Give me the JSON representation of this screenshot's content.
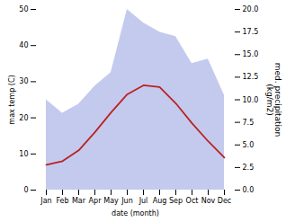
{
  "chart_data": {
    "type": "line",
    "xlabel": "date (month)",
    "ylabel": "max temp (C)",
    "y2label": "med. precipitation\n(kg/m2)",
    "categories": [
      "Jan",
      "Feb",
      "Mar",
      "Apr",
      "May",
      "Jun",
      "Jul",
      "Aug",
      "Sep",
      "Oct",
      "Nov",
      "Dec"
    ],
    "series": [
      {
        "type": "area",
        "axis": "y2",
        "color": "#b0b8e8",
        "values": [
          10.0,
          8.5,
          9.5,
          11.5,
          13.0,
          20.0,
          18.5,
          17.5,
          17.0,
          14.0,
          14.5,
          10.5
        ]
      },
      {
        "type": "line",
        "color": "#bb2222",
        "values": [
          7.0,
          8.0,
          11.0,
          16.0,
          21.5,
          26.5,
          29.0,
          28.5,
          24.0,
          18.5,
          13.5,
          9.0
        ]
      }
    ],
    "ylim": [
      0,
      50
    ],
    "yticks": [
      0,
      10,
      20,
      30,
      40,
      50
    ],
    "y2lim": [
      0,
      20
    ],
    "y2ticks": [
      {
        "value": 0,
        "label": "0.0"
      },
      {
        "value": 2.5,
        "label": "2.5"
      },
      {
        "value": 5,
        "label": "5.0"
      },
      {
        "value": 7.5,
        "label": "7.5"
      },
      {
        "value": 10,
        "label": "10.0"
      },
      {
        "value": 12.5,
        "label": "12.5"
      },
      {
        "value": 15,
        "label": "15.0"
      },
      {
        "value": 17.5,
        "label": "17.5"
      },
      {
        "value": 20,
        "label": "20.0"
      }
    ],
    "grid": false
  }
}
